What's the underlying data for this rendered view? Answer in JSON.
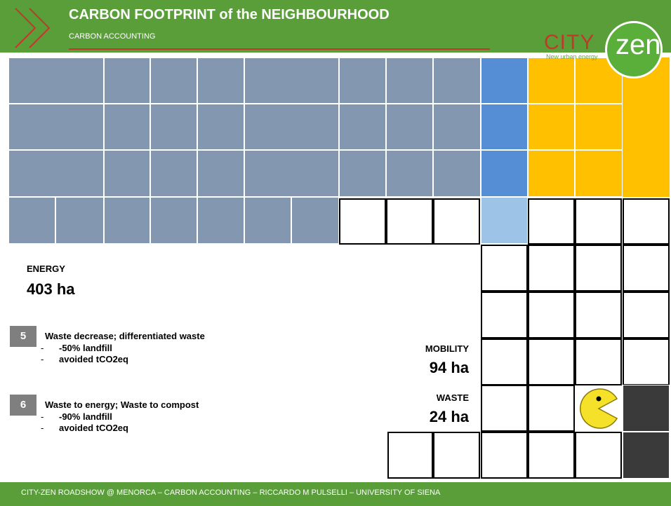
{
  "header": {
    "title": "CARBON FOOTPRINT of the NEIGHBOURHOOD",
    "subtitle": "CARBON ACCOUNTING"
  },
  "logo": {
    "city": "CITY",
    "zen": "zen",
    "tagline": "New urban energy"
  },
  "energy": {
    "label": "ENERGY",
    "value": "403 ha"
  },
  "actions": [
    {
      "number": "5",
      "title": "Waste decrease; differentiated waste",
      "items": [
        "-50% landfill",
        "avoided tCO2eq"
      ]
    },
    {
      "number": "6",
      "title": "Waste to energy; Waste to compost",
      "items": [
        "-90% landfill",
        "avoided tCO2eq"
      ]
    }
  ],
  "mobility": {
    "label": "MOBILITY",
    "value": "94 ha"
  },
  "waste": {
    "label": "WASTE",
    "value": "24 ha"
  },
  "footer": "CITY-ZEN ROADSHOW @ MENORCA – CARBON ACCOUNTING – RICCARDO M PULSELLI – UNIVERSITY OF SIENA"
}
